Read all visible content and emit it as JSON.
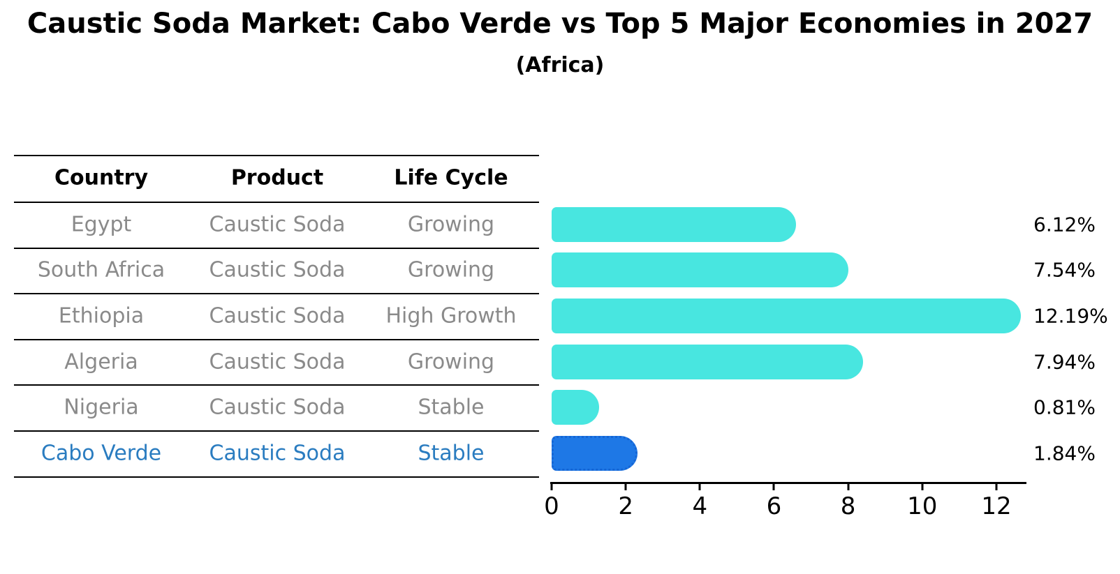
{
  "title": "Caustic Soda Market: Cabo Verde vs Top 5 Major Economies in 2027",
  "subtitle": "(Africa)",
  "table": {
    "headers": [
      "Country",
      "Product",
      "Life Cycle"
    ],
    "rows": [
      {
        "country": "Egypt",
        "product": "Caustic Soda",
        "life_cycle": "Growing",
        "highlight": false
      },
      {
        "country": "South Africa",
        "product": "Caustic Soda",
        "life_cycle": "Growing",
        "highlight": false
      },
      {
        "country": "Ethiopia",
        "product": "Caustic Soda",
        "life_cycle": "High Growth",
        "highlight": false
      },
      {
        "country": "Algeria",
        "product": "Caustic Soda",
        "life_cycle": "Growing",
        "highlight": false
      },
      {
        "country": "Nigeria",
        "product": "Caustic Soda",
        "life_cycle": "Stable",
        "highlight": false
      },
      {
        "country": "Cabo Verde",
        "product": "Caustic Soda",
        "life_cycle": "Stable",
        "highlight": true
      }
    ]
  },
  "chart_data": {
    "type": "bar",
    "orientation": "horizontal",
    "title": "Caustic Soda Market: Cabo Verde vs Top 5 Major Economies in 2027",
    "subtitle": "(Africa)",
    "categories": [
      "Egypt",
      "South Africa",
      "Ethiopia",
      "Algeria",
      "Nigeria",
      "Cabo Verde"
    ],
    "values": [
      6.12,
      7.54,
      12.19,
      7.94,
      0.81,
      1.84
    ],
    "value_labels": [
      "6.12%",
      "7.54%",
      "12.19%",
      "7.94%",
      "0.81%",
      "1.84%"
    ],
    "highlight_index": 5,
    "xticks": [
      "0",
      "2",
      "4",
      "6",
      "8",
      "10",
      "12"
    ],
    "xtick_values": [
      0,
      2,
      4,
      6,
      8,
      10,
      12
    ],
    "xlim": [
      0,
      12.8
    ],
    "xlabel": "",
    "ylabel": "",
    "grid": false,
    "legend": false,
    "bar_color": "#48E6E0",
    "highlight_bar_color": "#1E78E6",
    "highlight_border_color": "#1565D4",
    "highlight_text_color": "#2a7cc0",
    "row_text_color": "#8a8a8a"
  }
}
